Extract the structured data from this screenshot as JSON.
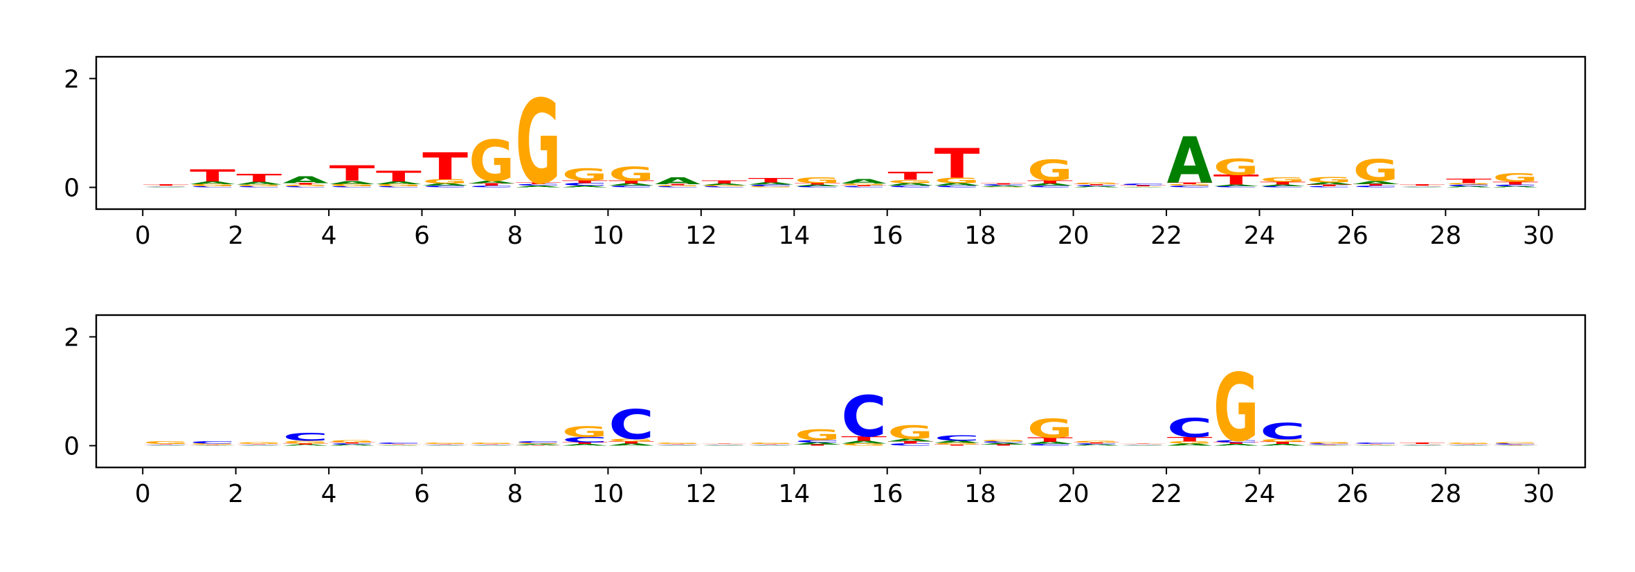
{
  "colors": {
    "A": "#008000",
    "C": "#0000ff",
    "G": "#ffa500",
    "T": "#ff0000",
    "axis": "#000000",
    "background": "#ffffff"
  },
  "chart_data": [
    {
      "type": "sequence-logo",
      "title": "",
      "xlabel": "",
      "ylabel": "",
      "xlim": [
        -1,
        31
      ],
      "ylim": [
        -0.4,
        2.4
      ],
      "x_ticks": [
        "0",
        "2",
        "4",
        "6",
        "8",
        "10",
        "12",
        "14",
        "16",
        "18",
        "20",
        "22",
        "24",
        "26",
        "28",
        "30"
      ],
      "y_ticks": [
        "0",
        "2"
      ],
      "grid": false,
      "positions": [
        {
          "x": 0,
          "A": 0.01,
          "C": 0.01,
          "G": 0.01,
          "T": 0.02
        },
        {
          "x": 1,
          "A": 0.05,
          "C": 0.02,
          "G": 0.04,
          "T": 0.22
        },
        {
          "x": 2,
          "A": 0.05,
          "C": 0.02,
          "G": 0.03,
          "T": 0.15
        },
        {
          "x": 3,
          "A": 0.12,
          "C": 0.02,
          "G": 0.03,
          "T": 0.03
        },
        {
          "x": 4,
          "A": 0.06,
          "C": 0.02,
          "G": 0.04,
          "T": 0.28
        },
        {
          "x": 5,
          "A": 0.05,
          "C": 0.02,
          "G": 0.04,
          "T": 0.2
        },
        {
          "x": 6,
          "A": 0.04,
          "C": 0.03,
          "G": 0.08,
          "T": 0.5
        },
        {
          "x": 7,
          "A": 0.05,
          "C": 0.03,
          "G": 0.75,
          "T": 0.04
        },
        {
          "x": 8,
          "A": 0.03,
          "C": 0.03,
          "G": 1.55,
          "T": 0.03
        },
        {
          "x": 9,
          "A": 0.03,
          "C": 0.05,
          "G": 0.22,
          "T": 0.05
        },
        {
          "x": 10,
          "A": 0.04,
          "C": 0.03,
          "G": 0.26,
          "T": 0.06
        },
        {
          "x": 11,
          "A": 0.12,
          "C": 0.02,
          "G": 0.02,
          "T": 0.02
        },
        {
          "x": 12,
          "A": 0.03,
          "C": 0.02,
          "G": 0.02,
          "T": 0.06
        },
        {
          "x": 13,
          "A": 0.04,
          "C": 0.03,
          "G": 0.02,
          "T": 0.08
        },
        {
          "x": 14,
          "A": 0.03,
          "C": 0.02,
          "G": 0.11,
          "T": 0.03
        },
        {
          "x": 15,
          "A": 0.08,
          "C": 0.02,
          "G": 0.03,
          "T": 0.02
        },
        {
          "x": 16,
          "A": 0.05,
          "C": 0.03,
          "G": 0.06,
          "T": 0.15
        },
        {
          "x": 17,
          "A": 0.05,
          "C": 0.03,
          "G": 0.1,
          "T": 0.55
        },
        {
          "x": 18,
          "A": 0.02,
          "C": 0.02,
          "G": 0.01,
          "T": 0.02
        },
        {
          "x": 19,
          "A": 0.04,
          "C": 0.03,
          "G": 0.38,
          "T": 0.06
        },
        {
          "x": 20,
          "A": 0.02,
          "C": 0.02,
          "G": 0.03,
          "T": 0.02
        },
        {
          "x": 21,
          "A": 0.01,
          "C": 0.03,
          "G": 0.01,
          "T": 0.02
        },
        {
          "x": 22,
          "A": 0.85,
          "C": 0.03,
          "G": 0.03,
          "T": 0.03
        },
        {
          "x": 23,
          "A": 0.03,
          "C": 0.02,
          "G": 0.3,
          "T": 0.18
        },
        {
          "x": 24,
          "A": 0.03,
          "C": 0.02,
          "G": 0.08,
          "T": 0.05
        },
        {
          "x": 25,
          "A": 0.04,
          "C": 0.02,
          "G": 0.1,
          "T": 0.03
        },
        {
          "x": 26,
          "A": 0.06,
          "C": 0.03,
          "G": 0.4,
          "T": 0.03
        },
        {
          "x": 27,
          "A": 0.01,
          "C": 0.01,
          "G": 0.01,
          "T": 0.02
        },
        {
          "x": 28,
          "A": 0.02,
          "C": 0.03,
          "G": 0.03,
          "T": 0.08
        },
        {
          "x": 29,
          "A": 0.02,
          "C": 0.03,
          "G": 0.16,
          "T": 0.05
        }
      ]
    },
    {
      "type": "sequence-logo",
      "title": "",
      "xlabel": "",
      "ylabel": "",
      "xlim": [
        -1,
        31
      ],
      "ylim": [
        -0.4,
        2.4
      ],
      "x_ticks": [
        "0",
        "2",
        "4",
        "6",
        "8",
        "10",
        "12",
        "14",
        "16",
        "18",
        "20",
        "22",
        "24",
        "26",
        "28",
        "30"
      ],
      "y_ticks": [
        "0",
        "2"
      ],
      "grid": false,
      "positions": [
        {
          "x": 0,
          "A": 0.01,
          "C": 0.01,
          "G": 0.05,
          "T": 0.01
        },
        {
          "x": 1,
          "A": 0.01,
          "C": 0.04,
          "G": 0.02,
          "T": 0.01
        },
        {
          "x": 2,
          "A": 0.01,
          "C": 0.01,
          "G": 0.03,
          "T": 0.01
        },
        {
          "x": 3,
          "A": 0.02,
          "C": 0.15,
          "G": 0.05,
          "T": 0.02
        },
        {
          "x": 4,
          "A": 0.02,
          "C": 0.02,
          "G": 0.04,
          "T": 0.02
        },
        {
          "x": 5,
          "A": 0.01,
          "C": 0.02,
          "G": 0.01,
          "T": 0.01
        },
        {
          "x": 6,
          "A": 0.01,
          "C": 0.01,
          "G": 0.02,
          "T": 0.01
        },
        {
          "x": 7,
          "A": 0.01,
          "C": 0.01,
          "G": 0.02,
          "T": 0.01
        },
        {
          "x": 8,
          "A": 0.02,
          "C": 0.03,
          "G": 0.02,
          "T": 0.01
        },
        {
          "x": 9,
          "A": 0.03,
          "C": 0.1,
          "G": 0.2,
          "T": 0.03
        },
        {
          "x": 10,
          "A": 0.04,
          "C": 0.55,
          "G": 0.05,
          "T": 0.04
        },
        {
          "x": 11,
          "A": 0.01,
          "C": 0.01,
          "G": 0.02,
          "T": 0.01
        },
        {
          "x": 12,
          "A": 0.01,
          "C": 0.01,
          "G": 0.01,
          "T": 0.01
        },
        {
          "x": 13,
          "A": 0.01,
          "C": 0.01,
          "G": 0.02,
          "T": 0.01
        },
        {
          "x": 14,
          "A": 0.04,
          "C": 0.04,
          "G": 0.2,
          "T": 0.02
        },
        {
          "x": 15,
          "A": 0.05,
          "C": 0.75,
          "G": 0.04,
          "T": 0.08
        },
        {
          "x": 16,
          "A": 0.05,
          "C": 0.04,
          "G": 0.25,
          "T": 0.04
        },
        {
          "x": 17,
          "A": 0.04,
          "C": 0.1,
          "G": 0.03,
          "T": 0.02
        },
        {
          "x": 18,
          "A": 0.03,
          "C": 0.03,
          "G": 0.03,
          "T": 0.02
        },
        {
          "x": 19,
          "A": 0.04,
          "C": 0.03,
          "G": 0.35,
          "T": 0.08
        },
        {
          "x": 20,
          "A": 0.02,
          "C": 0.02,
          "G": 0.03,
          "T": 0.02
        },
        {
          "x": 21,
          "A": 0.01,
          "C": 0.01,
          "G": 0.01,
          "T": 0.01
        },
        {
          "x": 22,
          "A": 0.04,
          "C": 0.35,
          "G": 0.04,
          "T": 0.08
        },
        {
          "x": 23,
          "A": 0.03,
          "C": 0.04,
          "G": 1.25,
          "T": 0.03
        },
        {
          "x": 24,
          "A": 0.03,
          "C": 0.3,
          "G": 0.05,
          "T": 0.04
        },
        {
          "x": 25,
          "A": 0.01,
          "C": 0.02,
          "G": 0.03,
          "T": 0.01
        },
        {
          "x": 26,
          "A": 0.01,
          "C": 0.02,
          "G": 0.01,
          "T": 0.01
        },
        {
          "x": 27,
          "A": 0.01,
          "C": 0.01,
          "G": 0.01,
          "T": 0.02
        },
        {
          "x": 28,
          "A": 0.01,
          "C": 0.01,
          "G": 0.02,
          "T": 0.01
        },
        {
          "x": 29,
          "A": 0.01,
          "C": 0.02,
          "G": 0.02,
          "T": 0.01
        }
      ]
    }
  ]
}
